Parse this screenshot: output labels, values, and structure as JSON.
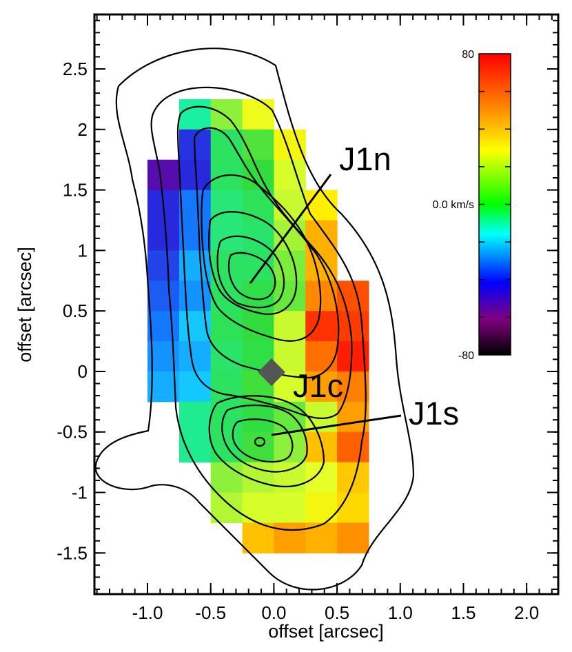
{
  "chart_data": {
    "type": "heatmap",
    "xlabel": "offset [arcsec]",
    "ylabel": "offset [arcsec]",
    "xlim": [
      -1.42,
      2.25
    ],
    "ylim": [
      -1.84,
      2.95
    ],
    "xticks": [
      -1.0,
      -0.5,
      0.0,
      0.5,
      1.0,
      1.5,
      2.0
    ],
    "xtick_labels": [
      "-1.0",
      "-0.5",
      "0.0",
      "0.5",
      "1.0",
      "1.5",
      "2.0"
    ],
    "yticks": [
      -1.5,
      -1.0,
      -0.5,
      0.0,
      0.5,
      1.0,
      1.5,
      2.0,
      2.5
    ],
    "ytick_labels": [
      "-1.5",
      "-1",
      "-0.5",
      "0",
      "0.5",
      "1",
      "1.5",
      "2",
      "2.5"
    ],
    "pixel_size": 0.25,
    "velocity_map": {
      "unit": "km/s",
      "x_centers": [
        -0.875,
        -0.625,
        -0.375,
        -0.125,
        0.125,
        0.375,
        0.625
      ],
      "y_centers": [
        2.125,
        1.875,
        1.625,
        1.375,
        1.125,
        0.875,
        0.625,
        0.375,
        0.125,
        -0.125,
        -0.375,
        -0.625,
        -0.875,
        -1.125,
        -1.375
      ],
      "values": [
        [
          null,
          0,
          30,
          45,
          null,
          null,
          null
        ],
        [
          null,
          -48,
          10,
          22,
          48,
          null,
          null
        ],
        [
          -60,
          -50,
          10,
          18,
          40,
          null,
          null
        ],
        [
          -50,
          -35,
          5,
          12,
          38,
          52,
          null
        ],
        [
          -50,
          -35,
          5,
          8,
          33,
          60,
          null
        ],
        [
          -45,
          -25,
          10,
          10,
          28,
          60,
          null
        ],
        [
          -40,
          -30,
          10,
          15,
          25,
          65,
          72
        ],
        [
          -35,
          -20,
          12,
          18,
          38,
          75,
          74
        ],
        [
          -30,
          -25,
          8,
          16,
          38,
          68,
          77
        ],
        [
          -25,
          -20,
          10,
          20,
          40,
          62,
          66
        ],
        [
          null,
          2,
          10,
          17,
          25,
          38,
          62
        ],
        [
          null,
          2,
          10,
          20,
          30,
          58,
          70
        ],
        [
          null,
          null,
          30,
          35,
          38,
          42,
          57
        ],
        [
          null,
          null,
          35,
          40,
          40,
          48,
          55
        ],
        [
          null,
          null,
          null,
          58,
          62,
          60,
          64
        ]
      ]
    },
    "colorbar": {
      "min": -80,
      "max": 80,
      "labels": [
        "80",
        "0.0 km/s",
        "-80"
      ],
      "stops": [
        "#ff0000",
        "#ff8000",
        "#ffff00",
        "#00ff00",
        "#00ffff",
        "#0000ff",
        "#800080",
        "#000000"
      ]
    },
    "annotations": [
      {
        "text": "J1n",
        "x": 0.55,
        "y": 1.55,
        "pointer_to": [
          -0.18,
          0.72
        ]
      },
      {
        "text": "J1c",
        "x": 0.18,
        "y": -0.32
      },
      {
        "text": "J1s",
        "x": 1.15,
        "y": -0.48,
        "pointer_to": [
          0.0,
          -0.57
        ]
      }
    ],
    "marker": {
      "shape": "diamond",
      "x": 0.0,
      "y": 0.0,
      "color": "#555555"
    },
    "grid": false
  }
}
